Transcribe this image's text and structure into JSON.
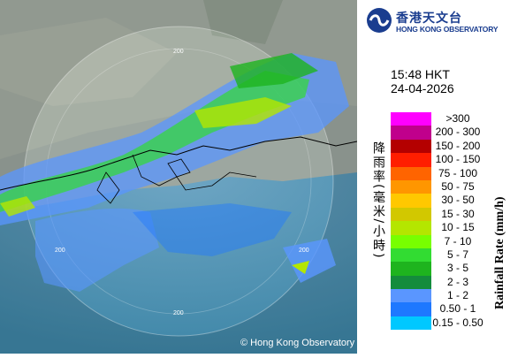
{
  "header": {
    "org_name_zh": "香港天文台",
    "org_name_en": "HONG KONG OBSERVATORY"
  },
  "timestamp": {
    "time": "15:48 HKT",
    "date": "24-04-2026"
  },
  "legend": {
    "title_en": "Rainfall Rate (mm/h)",
    "title_zh": "降雨率(毫米/小時)",
    "items": [
      {
        "label": ">300",
        "color": "#ff00ff"
      },
      {
        "label": "200 - 300",
        "color": "#c0008c"
      },
      {
        "label": "150 - 200",
        "color": "#b40000"
      },
      {
        "label": "100 - 150",
        "color": "#ff1e00"
      },
      {
        "label": "75 - 100",
        "color": "#ff6400"
      },
      {
        "label": "50 - 75",
        "color": "#ff9600"
      },
      {
        "label": "30 - 50",
        "color": "#ffc800"
      },
      {
        "label": "15 - 30",
        "color": "#d2c800"
      },
      {
        "label": "10 - 15",
        "color": "#b4e600"
      },
      {
        "label": "7 - 10",
        "color": "#78ff00"
      },
      {
        "label": "5 - 7",
        "color": "#32dc32"
      },
      {
        "label": "3 - 5",
        "color": "#1eb41e"
      },
      {
        "label": "2 - 3",
        "color": "#148c3c"
      },
      {
        "label": "1 - 2",
        "color": "#5a96ff"
      },
      {
        "label": "0.50 - 1",
        "color": "#1e78ff"
      },
      {
        "label": "0.15 - 0.50",
        "color": "#00c8ff"
      }
    ]
  },
  "map": {
    "range_ring_labels": [
      "200",
      "200",
      "200",
      "200"
    ],
    "copyright": "© Hong Kong Observatory"
  }
}
